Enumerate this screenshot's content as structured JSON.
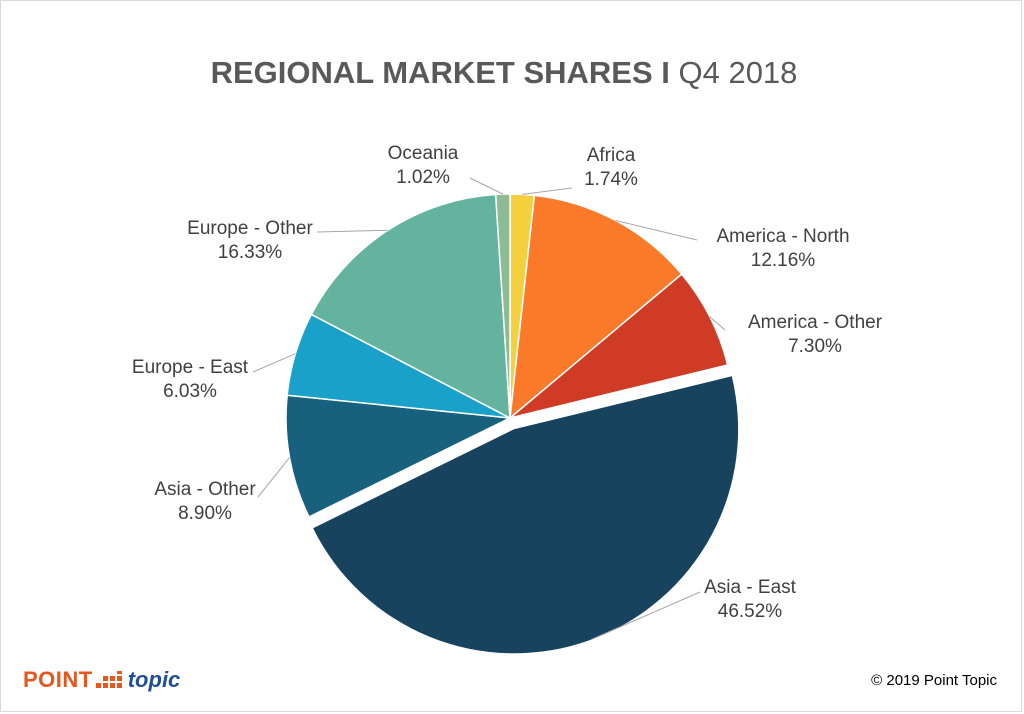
{
  "title": {
    "bold": "REGIONAL MARKET SHARES I",
    "normal": "Q4 2018"
  },
  "chart_data": {
    "type": "pie",
    "title": "REGIONAL MARKET SHARES I Q4 2018",
    "start_angle_deg": 0,
    "direction": "clockwise",
    "slices": [
      {
        "label": "Africa",
        "value": 1.74,
        "display": "1.74%",
        "color": "#f4d03f",
        "exploded": false
      },
      {
        "label": "America - North",
        "value": 12.16,
        "display": "12.16%",
        "color": "#fb7a29",
        "exploded": false
      },
      {
        "label": "America - Other",
        "value": 7.3,
        "display": "7.30%",
        "color": "#d03b25",
        "exploded": false
      },
      {
        "label": "Asia - East",
        "value": 46.52,
        "display": "46.52%",
        "color": "#17435e",
        "exploded": true
      },
      {
        "label": "Asia - Other",
        "value": 8.9,
        "display": "8.90%",
        "color": "#17617f",
        "exploded": false
      },
      {
        "label": "Europe - East",
        "value": 6.03,
        "display": "6.03%",
        "color": "#19a1c9",
        "exploded": false
      },
      {
        "label": "Europe - Other",
        "value": 16.33,
        "display": "16.33%",
        "color": "#64b39e",
        "exploded": false
      },
      {
        "label": "Oceania",
        "value": 1.02,
        "display": "1.02%",
        "color": "#8dbb94",
        "exploded": false
      }
    ],
    "legend": "none",
    "label_style": "outside-with-leader-lines"
  },
  "footer": {
    "logo_point": "POINT",
    "logo_topic": "topic",
    "copyright": "© 2019 Point Topic"
  }
}
